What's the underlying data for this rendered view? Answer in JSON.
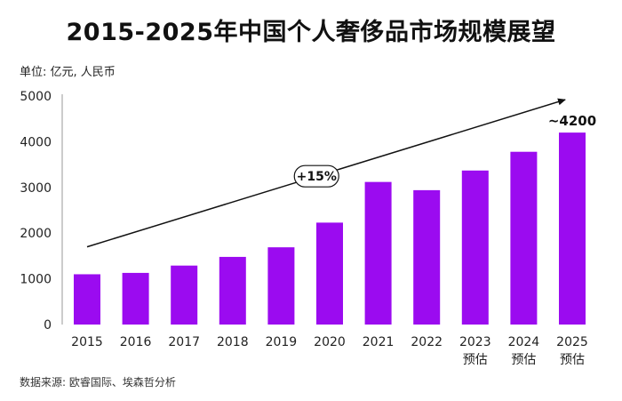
{
  "title": "2015-2025年中国个人奢侈品市场规模展望",
  "unit_label": "单位: 亿元, 人民币",
  "source": "数据来源: 欧睿国际、埃森哲分析",
  "colors": {
    "bar": "#9B0BF0",
    "axis": "#9a9a9a",
    "arrow": "#111111",
    "text": "#111111"
  },
  "chart_data": {
    "type": "bar",
    "title": "2015-2025年中国个人奢侈品市场规模展望",
    "ylabel": "单位: 亿元, 人民币",
    "xlabel": "",
    "ylim": [
      0,
      5000
    ],
    "yticks": [
      0,
      1000,
      2000,
      3000,
      4000,
      5000
    ],
    "categories": [
      "2015",
      "2016",
      "2017",
      "2018",
      "2019",
      "2020",
      "2021",
      "2022",
      "2023",
      "2024",
      "2025"
    ],
    "category_sublabels": [
      "",
      "",
      "",
      "",
      "",
      "",
      "",
      "",
      "预估",
      "预估",
      "预估"
    ],
    "values": [
      1100,
      1130,
      1290,
      1480,
      1690,
      2230,
      3120,
      2940,
      3370,
      3780,
      4200
    ],
    "annotations": {
      "last_value_label": "~4200",
      "trend_label": "+15%",
      "trend_arrow": {
        "from_x": "2015",
        "from_y": 1700,
        "to_x": "2025",
        "to_y": 4920
      }
    }
  }
}
